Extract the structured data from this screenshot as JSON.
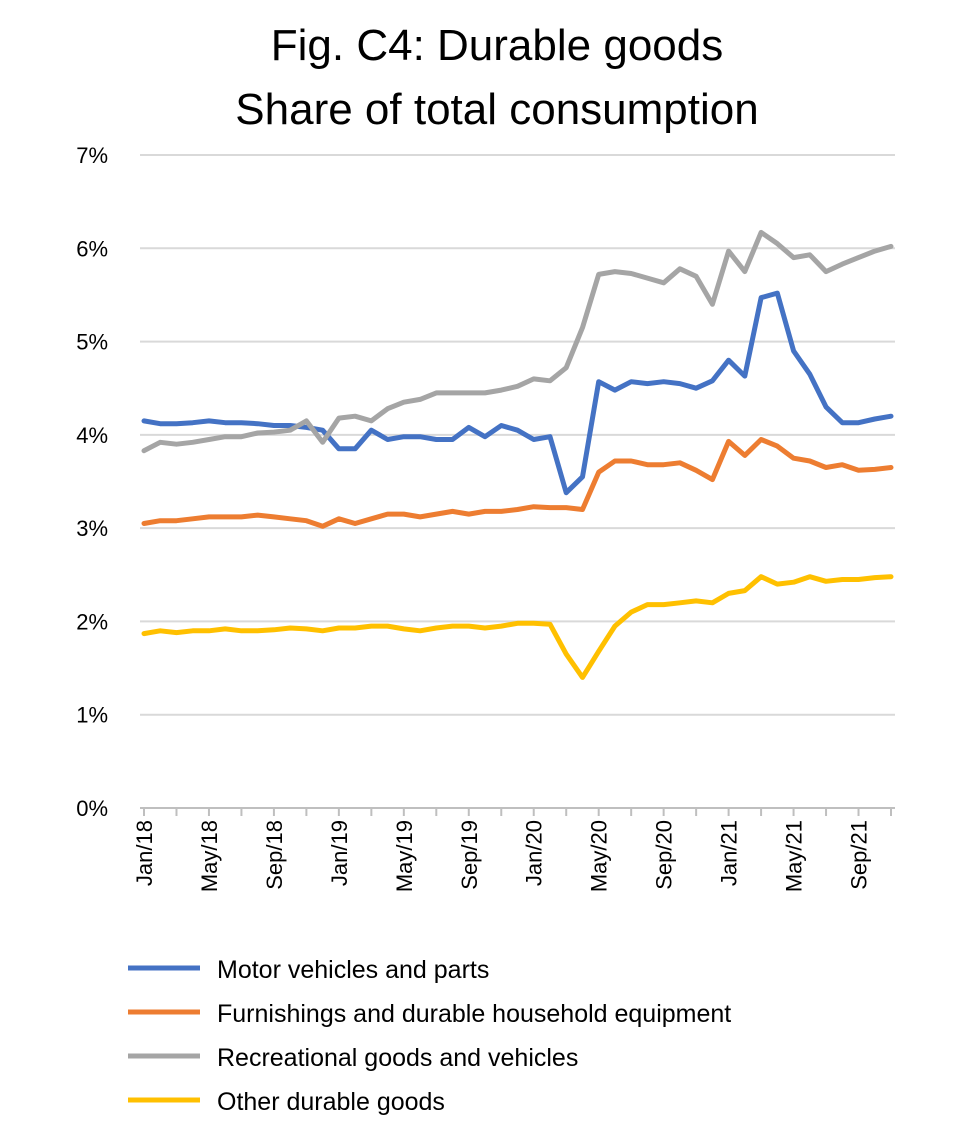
{
  "chart_data": {
    "type": "line",
    "title": "Fig. C4: Durable goods",
    "subtitle": "Share of total consumption",
    "xlabel": "",
    "ylabel": "",
    "ylim": [
      0,
      7
    ],
    "yticks": [
      "0%",
      "1%",
      "2%",
      "3%",
      "4%",
      "5%",
      "6%",
      "7%"
    ],
    "grid": true,
    "legend": "bottom",
    "x": [
      "Jan/18",
      "Feb/18",
      "Mar/18",
      "Apr/18",
      "May/18",
      "Jun/18",
      "Jul/18",
      "Aug/18",
      "Sep/18",
      "Oct/18",
      "Nov/18",
      "Dec/18",
      "Jan/19",
      "Feb/19",
      "Mar/19",
      "Apr/19",
      "May/19",
      "Jun/19",
      "Jul/19",
      "Aug/19",
      "Sep/19",
      "Oct/19",
      "Nov/19",
      "Dec/19",
      "Jan/20",
      "Feb/20",
      "Mar/20",
      "Apr/20",
      "May/20",
      "Jun/20",
      "Jul/20",
      "Aug/20",
      "Sep/20",
      "Oct/20",
      "Nov/20",
      "Dec/20",
      "Jan/21",
      "Feb/21",
      "Mar/21",
      "Apr/21",
      "May/21",
      "Jun/21",
      "Jul/21",
      "Aug/21",
      "Sep/21",
      "Oct/21",
      "Nov/21"
    ],
    "xtick_labels": [
      {
        "index": 0,
        "label": "Jan/18"
      },
      {
        "index": 4,
        "label": "May/18"
      },
      {
        "index": 8,
        "label": "Sep/18"
      },
      {
        "index": 12,
        "label": "Jan/19"
      },
      {
        "index": 16,
        "label": "May/19"
      },
      {
        "index": 20,
        "label": "Sep/19"
      },
      {
        "index": 24,
        "label": "Jan/20"
      },
      {
        "index": 28,
        "label": "May/20"
      },
      {
        "index": 32,
        "label": "Sep/20"
      },
      {
        "index": 36,
        "label": "Jan/21"
      },
      {
        "index": 40,
        "label": "May/21"
      },
      {
        "index": 44,
        "label": "Sep/21"
      }
    ],
    "series": [
      {
        "name": "Motor vehicles and parts",
        "color": "#4472c4",
        "values": [
          4.15,
          4.12,
          4.12,
          4.13,
          4.15,
          4.13,
          4.13,
          4.12,
          4.1,
          4.1,
          4.08,
          4.05,
          3.85,
          3.85,
          4.05,
          3.95,
          3.98,
          3.98,
          3.95,
          3.95,
          4.08,
          3.98,
          4.1,
          4.05,
          3.95,
          3.98,
          3.38,
          3.55,
          4.57,
          4.48,
          4.57,
          4.55,
          4.57,
          4.55,
          4.5,
          4.58,
          4.8,
          4.63,
          5.47,
          5.52,
          4.9,
          4.65,
          4.3,
          4.13,
          4.13,
          4.17,
          4.2
        ]
      },
      {
        "name": "Furnishings and durable household equipment",
        "color": "#ed7d31",
        "values": [
          3.05,
          3.08,
          3.08,
          3.1,
          3.12,
          3.12,
          3.12,
          3.14,
          3.12,
          3.1,
          3.08,
          3.02,
          3.1,
          3.05,
          3.1,
          3.15,
          3.15,
          3.12,
          3.15,
          3.18,
          3.15,
          3.18,
          3.18,
          3.2,
          3.23,
          3.22,
          3.22,
          3.2,
          3.6,
          3.72,
          3.72,
          3.68,
          3.68,
          3.7,
          3.62,
          3.52,
          3.93,
          3.78,
          3.95,
          3.88,
          3.75,
          3.72,
          3.65,
          3.68,
          3.62,
          3.63,
          3.65
        ]
      },
      {
        "name": "Recreational goods and vehicles",
        "color": "#a5a5a5",
        "values": [
          3.83,
          3.92,
          3.9,
          3.92,
          3.95,
          3.98,
          3.98,
          4.02,
          4.03,
          4.05,
          4.15,
          3.92,
          4.18,
          4.2,
          4.15,
          4.28,
          4.35,
          4.38,
          4.45,
          4.45,
          4.45,
          4.45,
          4.48,
          4.52,
          4.6,
          4.58,
          4.72,
          5.15,
          5.72,
          5.75,
          5.73,
          5.68,
          5.63,
          5.78,
          5.7,
          5.4,
          5.97,
          5.75,
          6.17,
          6.05,
          5.9,
          5.93,
          5.75,
          5.83,
          5.9,
          5.97,
          6.02
        ]
      },
      {
        "name": "Other durable goods",
        "color": "#ffc000",
        "values": [
          1.87,
          1.9,
          1.88,
          1.9,
          1.9,
          1.92,
          1.9,
          1.9,
          1.91,
          1.93,
          1.92,
          1.9,
          1.93,
          1.93,
          1.95,
          1.95,
          1.92,
          1.9,
          1.93,
          1.95,
          1.95,
          1.93,
          1.95,
          1.98,
          1.98,
          1.97,
          1.65,
          1.4,
          1.68,
          1.95,
          2.1,
          2.18,
          2.18,
          2.2,
          2.22,
          2.2,
          2.3,
          2.33,
          2.48,
          2.4,
          2.42,
          2.48,
          2.43,
          2.45,
          2.45,
          2.47,
          2.48
        ]
      }
    ]
  }
}
